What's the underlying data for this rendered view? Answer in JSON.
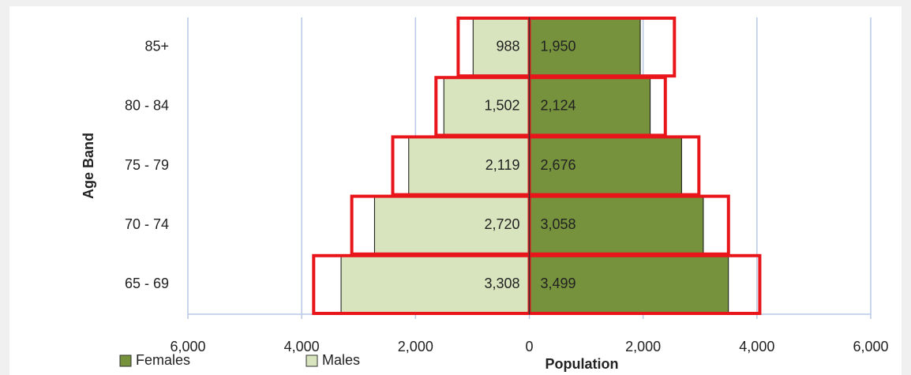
{
  "chart_data": {
    "type": "population-pyramid",
    "x_label": "Population",
    "y_label": "Age Band",
    "categories": [
      "65 - 69",
      "70 - 74",
      "75 - 79",
      "80 - 84",
      "85+"
    ],
    "series": [
      {
        "name": "Females",
        "color": "#76923c",
        "values": [
          3499,
          3058,
          2676,
          2124,
          1950
        ],
        "value_labels": [
          "3,499",
          "3,058",
          "2,676",
          "2,124",
          "1,950"
        ]
      },
      {
        "name": "Males",
        "color": "#d7e4bd",
        "values": [
          -3308,
          -2720,
          -2119,
          -1502,
          -988
        ],
        "value_labels": [
          "3,308",
          "2,720",
          "2,119",
          "1,502",
          "988"
        ]
      }
    ],
    "outline_series": [
      {
        "color": "#e8161b",
        "values": [
          4050,
          3500,
          2980,
          2390,
          2550
        ]
      },
      {
        "color": "#e8161b",
        "values": [
          -3790,
          -3120,
          -2400,
          -1640,
          -1250
        ]
      }
    ],
    "xlim": [
      -6000,
      6000
    ],
    "xticks": [
      {
        "value": -6000,
        "label": "6,000"
      },
      {
        "value": -4000,
        "label": "4,000"
      },
      {
        "value": -2000,
        "label": "2,000"
      },
      0,
      {
        "value": 2000,
        "label": "2,000"
      },
      {
        "value": 4000,
        "label": "4,000"
      },
      {
        "value": 6000,
        "label": "6,000"
      }
    ],
    "grid": true,
    "grid_color": "#b8c8e6"
  }
}
